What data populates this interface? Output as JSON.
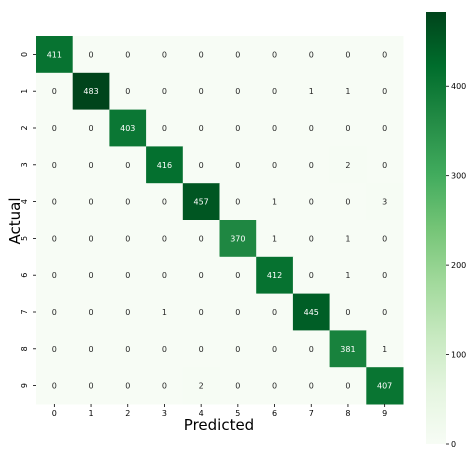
{
  "chart_data": {
    "type": "heatmap",
    "title": "",
    "xlabel": "Predicted",
    "ylabel": "Actual",
    "x_categories": [
      "0",
      "1",
      "2",
      "3",
      "4",
      "5",
      "6",
      "7",
      "8",
      "9"
    ],
    "y_categories": [
      "0",
      "1",
      "2",
      "3",
      "4",
      "5",
      "6",
      "7",
      "8",
      "9"
    ],
    "values": [
      [
        411,
        0,
        0,
        0,
        0,
        0,
        0,
        0,
        0,
        0
      ],
      [
        0,
        483,
        0,
        0,
        0,
        0,
        0,
        1,
        1,
        0
      ],
      [
        0,
        0,
        403,
        0,
        0,
        0,
        0,
        0,
        0,
        0
      ],
      [
        0,
        0,
        0,
        416,
        0,
        0,
        0,
        0,
        2,
        0
      ],
      [
        0,
        0,
        0,
        0,
        457,
        0,
        1,
        0,
        0,
        3
      ],
      [
        0,
        0,
        0,
        0,
        0,
        370,
        1,
        0,
        1,
        0
      ],
      [
        0,
        0,
        0,
        0,
        0,
        0,
        412,
        0,
        1,
        0
      ],
      [
        0,
        0,
        0,
        1,
        0,
        0,
        0,
        445,
        0,
        0
      ],
      [
        0,
        0,
        0,
        0,
        0,
        0,
        0,
        0,
        381,
        1
      ],
      [
        0,
        0,
        0,
        0,
        2,
        0,
        0,
        0,
        0,
        407
      ]
    ],
    "colormap": "Greens",
    "colorbar": {
      "range": [
        0,
        483
      ],
      "ticks": [
        0,
        100,
        200,
        300,
        400
      ],
      "tick_labels": [
        "0",
        "100",
        "200",
        "300",
        "400"
      ]
    },
    "grid": false,
    "legend": "colorbar-right"
  },
  "colors": {
    "low": "#f7fcf5",
    "high": "#00441b",
    "text_dark": "#262626",
    "text_light": "#ffffff"
  }
}
